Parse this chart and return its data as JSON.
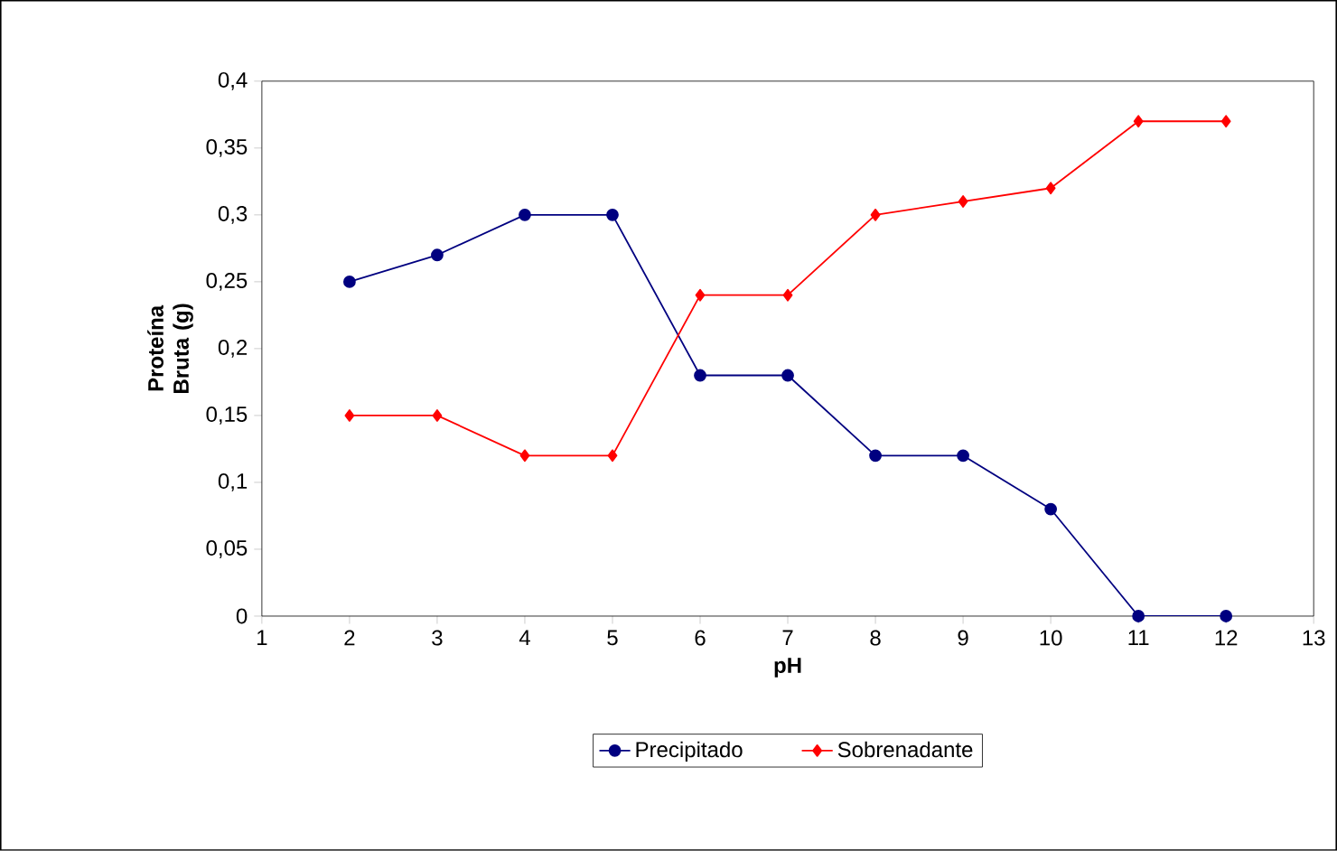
{
  "chart_data": {
    "type": "line",
    "xlabel": "pH",
    "ylabel": "Proteína Bruta (g)",
    "x": [
      2,
      3,
      4,
      5,
      6,
      7,
      8,
      9,
      10,
      11,
      12
    ],
    "series": [
      {
        "name": "Precipitado",
        "color": "#000080",
        "marker": "circle",
        "values": [
          0.25,
          0.27,
          0.3,
          0.3,
          0.18,
          0.18,
          0.12,
          0.12,
          0.08,
          0,
          0
        ]
      },
      {
        "name": "Sobrenadante",
        "color": "#ff0000",
        "marker": "diamond",
        "values": [
          0.15,
          0.15,
          0.12,
          0.12,
          0.24,
          0.24,
          0.3,
          0.31,
          0.32,
          0.37,
          0.37
        ]
      }
    ],
    "xlim": [
      1,
      13
    ],
    "xticks": [
      1,
      2,
      3,
      4,
      5,
      6,
      7,
      8,
      9,
      10,
      11,
      12,
      13
    ],
    "ylim": [
      0,
      0.4
    ],
    "yticks": [
      0,
      {
        "value": 0.05,
        "label": "0,05"
      },
      {
        "value": 0.1,
        "label": "0,1"
      },
      {
        "value": 0.15,
        "label": "0,15"
      },
      {
        "value": 0.2,
        "label": "0,2"
      },
      {
        "value": 0.25,
        "label": "0,25"
      },
      {
        "value": 0.3,
        "label": "0,3"
      },
      {
        "value": 0.35,
        "label": "0,35"
      },
      {
        "value": 0.4,
        "label": "0,4"
      }
    ],
    "grid": false,
    "legend": "bottom",
    "line_style": "solid"
  }
}
